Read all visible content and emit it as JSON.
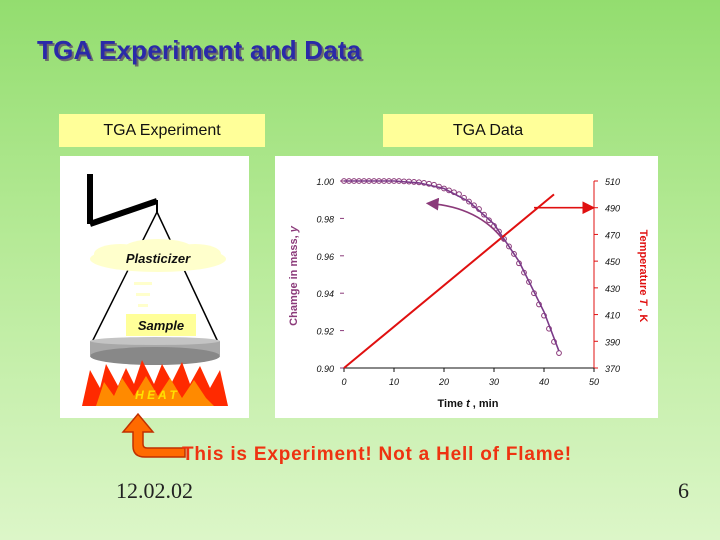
{
  "slide": {
    "title": "TGA Experiment and Data",
    "date": "12.02.02",
    "page_number": "6"
  },
  "experiment": {
    "label": "TGA Experiment",
    "plasticizer": "Plasticizer",
    "sample": "Sample",
    "heat": "H E A T"
  },
  "data_panel": {
    "label": "TGA Data"
  },
  "caption": "This is Experiment! Not a Hell of Flame!",
  "chart_data": {
    "type": "line",
    "xlabel_parts": [
      "Time ",
      "t",
      " , min"
    ],
    "ylabel_parts": [
      "Chamge in mass, ",
      "y"
    ],
    "y2label_parts": [
      "Temperature ",
      "T",
      " , K"
    ],
    "xlim": [
      0,
      50
    ],
    "ylim": [
      0.9,
      1.0
    ],
    "y2lim": [
      370,
      510
    ],
    "x_ticks": [
      "0",
      "10",
      "20",
      "30",
      "40",
      "50"
    ],
    "y_ticks": [
      "0.90",
      "0.92",
      "0.94",
      "0.96",
      "0.98",
      "1.00"
    ],
    "y2_ticks": [
      "370",
      "390",
      "410",
      "430",
      "450",
      "470",
      "490",
      "510"
    ],
    "series": [
      {
        "axis": "left",
        "marker": "circle",
        "color": "#8b3a7a",
        "points": [
          [
            0,
            1.0
          ],
          [
            1,
            1.0
          ],
          [
            2,
            1.0
          ],
          [
            3,
            1.0
          ],
          [
            4,
            1.0
          ],
          [
            5,
            1.0
          ],
          [
            6,
            1.0
          ],
          [
            7,
            1.0
          ],
          [
            8,
            1.0
          ],
          [
            9,
            1.0
          ],
          [
            10,
            1.0
          ],
          [
            11,
            1.0
          ],
          [
            12,
            0.9998
          ],
          [
            13,
            0.9997
          ],
          [
            14,
            0.9995
          ],
          [
            15,
            0.9993
          ],
          [
            16,
            0.999
          ],
          [
            17,
            0.9985
          ],
          [
            18,
            0.998
          ],
          [
            19,
            0.997
          ],
          [
            20,
            0.996
          ],
          [
            21,
            0.995
          ],
          [
            22,
            0.994
          ],
          [
            23,
            0.993
          ],
          [
            24,
            0.991
          ],
          [
            25,
            0.989
          ],
          [
            26,
            0.987
          ],
          [
            27,
            0.985
          ],
          [
            28,
            0.982
          ],
          [
            29,
            0.979
          ],
          [
            30,
            0.976
          ],
          [
            31,
            0.973
          ],
          [
            32,
            0.969
          ],
          [
            33,
            0.965
          ],
          [
            34,
            0.961
          ],
          [
            35,
            0.956
          ],
          [
            36,
            0.951
          ],
          [
            37,
            0.946
          ],
          [
            38,
            0.94
          ],
          [
            39,
            0.934
          ],
          [
            40,
            0.928
          ],
          [
            41,
            0.921
          ],
          [
            42,
            0.914
          ],
          [
            43,
            0.908
          ]
        ]
      },
      {
        "axis": "left",
        "marker": "none",
        "color": "#7a3a88",
        "points": [
          [
            0,
            1.0
          ],
          [
            10,
            1.0
          ],
          [
            15,
            0.999
          ],
          [
            20,
            0.996
          ],
          [
            25,
            0.989
          ],
          [
            30,
            0.977
          ],
          [
            35,
            0.957
          ],
          [
            40,
            0.93
          ],
          [
            43,
            0.909
          ]
        ]
      },
      {
        "axis": "right",
        "marker": "none",
        "color": "#e01010",
        "points": [
          [
            0,
            370
          ],
          [
            42,
            500
          ]
        ]
      }
    ],
    "annotations": [
      {
        "type": "arrow",
        "target_axis": "left",
        "color": "#8b3a7a"
      },
      {
        "type": "arrow",
        "target_axis": "right",
        "color": "#e01010"
      }
    ],
    "colors": {
      "left_axis_text": "#8b3a7a",
      "right_axis_text": "#e01010",
      "tick_text": "#111111"
    }
  }
}
